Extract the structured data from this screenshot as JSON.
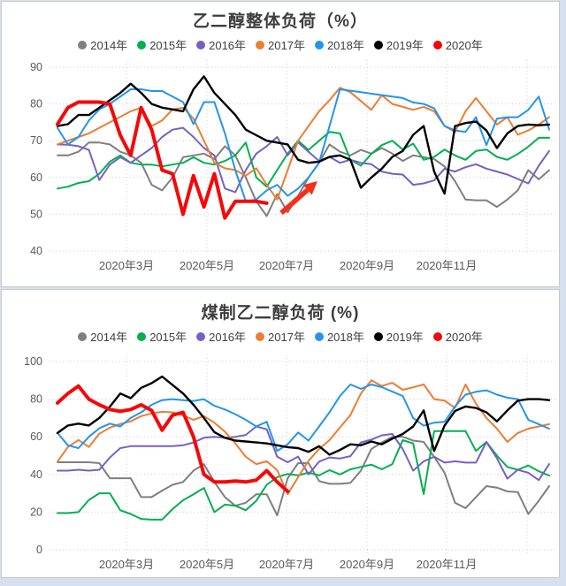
{
  "page": {
    "background": "#d6e0ef",
    "panel_background": "#ffffff",
    "panel_border": "#c9c9c9",
    "grid_color": "#cccccc",
    "tick_color": "#595959",
    "title_color": "#3d3d3d"
  },
  "chart_data": [
    {
      "type": "line",
      "title": "乙二醇整体负荷（%）",
      "ylim": [
        40,
        90
      ],
      "yticks": [
        90,
        80,
        70,
        60,
        50,
        40
      ],
      "x_labels": [
        "2020年3月",
        "2020年5月",
        "2020年7月",
        "2020年9月",
        "2020年11月"
      ],
      "x_unit": "week",
      "grid": "dotted",
      "legend_position": "top",
      "annotation": {
        "type": "arrow",
        "color": "#F62E17",
        "from": [
          316,
          239
        ],
        "to": [
          357,
          203
        ]
      },
      "series": [
        {
          "name": "2014年",
          "color": "#7F7F7F",
          "width": 2,
          "values": [
            66,
            66,
            67,
            69.5,
            69.5,
            69,
            67,
            66,
            64,
            58,
            56.5,
            60,
            65.5,
            66,
            66.5,
            65,
            68.5,
            66,
            60,
            53.5,
            49.5,
            55.5,
            50.5,
            55,
            60,
            64,
            69,
            67,
            66,
            67.5,
            66.5,
            68,
            66.5,
            64.5,
            66,
            65.5,
            65,
            63,
            59,
            54,
            53.8,
            53.8,
            52,
            54,
            56.5,
            62,
            59.5,
            62
          ]
        },
        {
          "name": "2015年",
          "color": "#00B050",
          "width": 2,
          "values": [
            57,
            57.5,
            58.5,
            59,
            61,
            64.3,
            66,
            64,
            63.5,
            63.5,
            63,
            63.5,
            64,
            65.5,
            64,
            63.5,
            64.5,
            66,
            69.5,
            60,
            57.5,
            62,
            66.5,
            70,
            67.5,
            70,
            72.4,
            72,
            64.8,
            63.2,
            66.4,
            68.8,
            70,
            67.6,
            69.2,
            64.8,
            65.6,
            67.6,
            66,
            64.8,
            67.2,
            67.6,
            65.6,
            64.8,
            66.4,
            68.4,
            70.8,
            70.8
          ]
        },
        {
          "name": "2016年",
          "color": "#7661C2",
          "width": 2,
          "values": [
            69,
            68.9,
            68.5,
            67.5,
            59.3,
            63.5,
            65.5,
            64,
            66,
            68,
            71,
            73,
            73.5,
            71,
            68,
            66,
            57,
            56,
            62,
            66.5,
            68.5,
            71,
            66,
            69.5,
            67,
            64.5,
            65.6,
            64,
            64.8,
            64,
            63.6,
            61.6,
            61,
            60.8,
            58,
            58.4,
            59.2,
            62.4,
            61.6,
            62.8,
            63.6,
            62.4,
            61.6,
            60.8,
            59.6,
            58.4,
            63.2,
            67.2
          ]
        },
        {
          "name": "2017年",
          "color": "#ED7D31",
          "width": 2,
          "values": [
            69,
            70,
            71,
            72,
            73.5,
            75,
            76.5,
            78,
            79,
            74,
            75.5,
            78.5,
            79,
            76,
            70,
            64,
            62.5,
            62,
            60.5,
            62.5,
            58,
            54,
            62,
            70,
            74,
            78,
            81,
            84.4,
            83.2,
            80.8,
            78.4,
            82.4,
            80,
            79.2,
            78.4,
            79.2,
            78,
            74,
            72.4,
            78,
            81.6,
            78,
            74.4,
            76.4,
            71.6,
            72.8,
            74.4,
            76.4
          ]
        },
        {
          "name": "2018年",
          "color": "#2395EC",
          "width": 2,
          "values": [
            73.5,
            69,
            71,
            75.5,
            78.5,
            80,
            82,
            84,
            84,
            83.5,
            83.5,
            82,
            80.5,
            74.5,
            80.5,
            80.5,
            72,
            62,
            53.5,
            54,
            56.5,
            58,
            55,
            57,
            60,
            64,
            74,
            84,
            83.6,
            83.2,
            82.8,
            82.4,
            82,
            81.6,
            80.4,
            80,
            78.8,
            74,
            72.8,
            72.4,
            76.4,
            68.8,
            76,
            76.4,
            76.4,
            78.4,
            82,
            73
          ]
        },
        {
          "name": "2019年",
          "color": "#000000",
          "width": 2.4,
          "values": [
            74,
            74.5,
            77,
            77,
            79,
            81,
            83,
            85.5,
            83,
            80,
            79,
            78.5,
            78,
            84,
            87.5,
            83,
            80,
            77,
            73,
            71.5,
            70,
            69.5,
            69,
            64.8,
            64,
            64.3,
            65.6,
            66,
            64.8,
            57.2,
            60,
            62.4,
            65.6,
            67.2,
            71.6,
            74,
            61.6,
            55.6,
            74,
            74.8,
            75.2,
            72.8,
            68,
            72,
            74,
            74.4,
            74.2,
            74.4
          ]
        },
        {
          "name": "2020年",
          "color": "#F40808",
          "width": 4,
          "values": [
            74.5,
            79,
            80.5,
            80.5,
            80.5,
            80,
            71.5,
            66,
            79,
            73,
            62,
            61,
            50,
            60.5,
            52,
            61,
            49,
            53.5,
            53.5,
            53.5,
            53
          ]
        }
      ]
    },
    {
      "type": "line",
      "title": "煤制乙二醇负荷 (%)",
      "ylim": [
        0,
        100
      ],
      "yticks": [
        100,
        80,
        60,
        40,
        20,
        0
      ],
      "x_labels": [
        "2020年3月",
        "2020年5月",
        "2020年7月",
        "2020年9月",
        "2020年11月"
      ],
      "x_unit": "week",
      "grid": "dotted",
      "legend_position": "top",
      "annotation": null,
      "series": [
        {
          "name": "2014年",
          "color": "#7F7F7F",
          "width": 2,
          "values": [
            46.5,
            46.5,
            46.5,
            46.5,
            46,
            38,
            38,
            38,
            28,
            28,
            31.4,
            34.5,
            36,
            42,
            45.5,
            36,
            28,
            23.4,
            25,
            29.5,
            29.5,
            18.3,
            38,
            46,
            46,
            36.5,
            35,
            35,
            35.5,
            42,
            53.5,
            57,
            60,
            60,
            58,
            57.3,
            49.4,
            40.9,
            25,
            22.1,
            28,
            33.8,
            33,
            31,
            30.6,
            19,
            26,
            33.8
          ]
        },
        {
          "name": "2015年",
          "color": "#00B050",
          "width": 2,
          "values": [
            19.5,
            19.5,
            20,
            26.5,
            30,
            30,
            21,
            19,
            16.4,
            16,
            16,
            21.6,
            26.3,
            29.5,
            32.8,
            20,
            24,
            23.4,
            21,
            26,
            34.5,
            38.6,
            40.3,
            39.5,
            41,
            39.5,
            42.3,
            40,
            42.7,
            44,
            45.2,
            42.7,
            45.5,
            58.2,
            56.5,
            29.6,
            63,
            63,
            63,
            63,
            52.5,
            57.3,
            50,
            44,
            42.5,
            44.8,
            41.7,
            39.4
          ]
        },
        {
          "name": "2016年",
          "color": "#7661C2",
          "width": 2,
          "values": [
            42,
            42,
            42.5,
            42,
            42.5,
            49,
            54,
            55,
            55,
            55,
            55,
            55,
            55.5,
            57,
            59.5,
            60,
            59.5,
            60,
            61,
            65.5,
            64,
            49.5,
            46.5,
            49.5,
            40,
            46.8,
            49,
            48.5,
            49.7,
            57,
            58.5,
            60.8,
            61.5,
            53.5,
            42,
            47,
            49.4,
            46.3,
            47,
            46.3,
            46.3,
            57.3,
            48.6,
            37.8,
            42.5,
            40.9,
            37,
            45.5
          ]
        },
        {
          "name": "2017年",
          "color": "#ED7D31",
          "width": 2,
          "values": [
            46.8,
            54.6,
            58.3,
            54.6,
            61.6,
            64.9,
            66.8,
            68.2,
            71,
            72.4,
            73.3,
            73,
            71.4,
            69,
            71,
            67.5,
            62.7,
            56.5,
            49.4,
            45.5,
            47,
            42.3,
            29.5,
            38.6,
            47.3,
            53.5,
            58.2,
            65,
            71.5,
            83,
            90,
            87,
            88.7,
            85,
            86.3,
            87.8,
            80,
            79.2,
            75.3,
            87.8,
            77.6,
            70,
            64.3,
            57.3,
            62,
            64.3,
            65.5,
            66.7
          ]
        },
        {
          "name": "2018年",
          "color": "#2395EC",
          "width": 2,
          "values": [
            62,
            55.5,
            54,
            60,
            64.5,
            67,
            65.5,
            70,
            73,
            77,
            79.5,
            80,
            79.5,
            79,
            80,
            76.5,
            74.5,
            72,
            69,
            65.5,
            68,
            52.5,
            56,
            62.3,
            58,
            65.5,
            73,
            81.7,
            87.8,
            85.5,
            87.8,
            86.4,
            84,
            81.7,
            70,
            65.9,
            67.5,
            68,
            76.1,
            82.4,
            83.9,
            84.7,
            82.4,
            80.8,
            80,
            69,
            66.7,
            64.3
          ]
        },
        {
          "name": "2019年",
          "color": "#000000",
          "width": 2.4,
          "values": [
            62,
            66,
            67,
            66,
            70,
            76,
            83,
            80.5,
            86,
            88.5,
            92,
            87.5,
            83,
            77,
            70,
            62.5,
            59.5,
            58,
            57.5,
            57,
            56.5,
            55.5,
            54.5,
            54,
            52,
            55,
            50.5,
            53,
            56,
            55.5,
            57.5,
            56,
            59,
            61.5,
            65.5,
            74,
            52.5,
            66,
            73.7,
            76.1,
            75.3,
            73,
            68.2,
            74,
            79.2,
            80,
            80,
            79.5
          ]
        },
        {
          "name": "2020年",
          "color": "#F40808",
          "width": 4,
          "values": [
            78,
            83,
            87,
            80,
            77,
            74.5,
            73.5,
            74.5,
            77,
            74,
            63.5,
            71.5,
            73,
            60,
            40,
            36,
            36,
            36.5,
            36,
            37,
            42,
            36,
            31
          ]
        }
      ]
    }
  ]
}
